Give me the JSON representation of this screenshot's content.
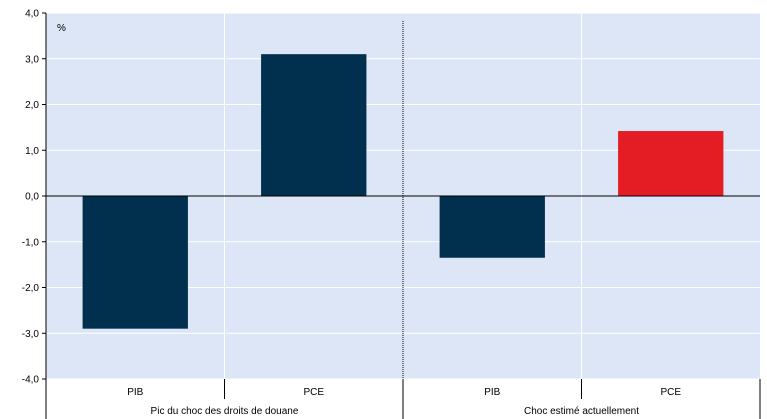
{
  "chart_data": {
    "type": "bar",
    "unit_label": "%",
    "ylim": [
      -4.0,
      4.0
    ],
    "y_ticks": [
      {
        "value": 4.0,
        "label": "4,0"
      },
      {
        "value": 3.0,
        "label": "3,0"
      },
      {
        "value": 2.0,
        "label": "2,0"
      },
      {
        "value": 1.0,
        "label": "1,0"
      },
      {
        "value": 0.0,
        "label": "0,0"
      },
      {
        "value": -1.0,
        "label": "-1,0"
      },
      {
        "value": -2.0,
        "label": "-2,0"
      },
      {
        "value": -3.0,
        "label": "-3,0"
      },
      {
        "value": -4.0,
        "label": "-4,0"
      }
    ],
    "grid": true,
    "background": "#dce6f7",
    "groups": [
      {
        "label": "Pic du choc des droits de douane",
        "bars": [
          {
            "category": "PIB",
            "value": -2.9,
            "color": "#00304d"
          },
          {
            "category": "PCE",
            "value": 3.1,
            "color": "#00304d"
          }
        ]
      },
      {
        "label": "Choc estimé actuellement",
        "bars": [
          {
            "category": "PIB",
            "value": -1.35,
            "color": "#00304d"
          },
          {
            "category": "PCE",
            "value": 1.42,
            "color": "#e31d23"
          }
        ]
      }
    ]
  }
}
